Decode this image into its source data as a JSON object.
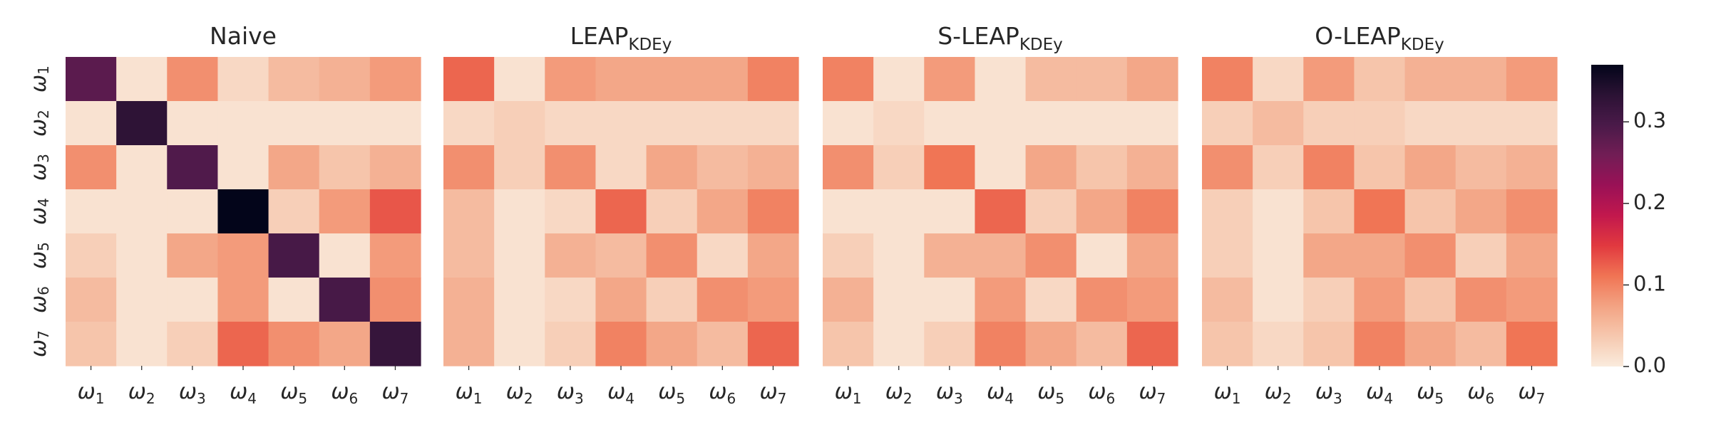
{
  "chart_data": {
    "type": "heatmap",
    "row_labels": [
      {
        "base": "ω",
        "sub": "1"
      },
      {
        "base": "ω",
        "sub": "2"
      },
      {
        "base": "ω",
        "sub": "3"
      },
      {
        "base": "ω",
        "sub": "4"
      },
      {
        "base": "ω",
        "sub": "5"
      },
      {
        "base": "ω",
        "sub": "6"
      },
      {
        "base": "ω",
        "sub": "7"
      }
    ],
    "col_labels": [
      {
        "base": "ω",
        "sub": "1"
      },
      {
        "base": "ω",
        "sub": "2"
      },
      {
        "base": "ω",
        "sub": "3"
      },
      {
        "base": "ω",
        "sub": "4"
      },
      {
        "base": "ω",
        "sub": "5"
      },
      {
        "base": "ω",
        "sub": "6"
      },
      {
        "base": "ω",
        "sub": "7"
      }
    ],
    "colormap": "rocket_r",
    "colorbar": {
      "range": [
        0.0,
        0.37
      ],
      "ticks": [
        0.0,
        0.1,
        0.2,
        0.3
      ],
      "tick_labels": [
        "0.0",
        "0.1",
        "0.2",
        "0.3"
      ]
    },
    "panels": [
      {
        "title": {
          "base": "Naive",
          "sub": ""
        },
        "values": [
          [
            0.28,
            0.01,
            0.09,
            0.02,
            0.05,
            0.06,
            0.08
          ],
          [
            0.01,
            0.33,
            0.01,
            0.01,
            0.01,
            0.01,
            0.01
          ],
          [
            0.09,
            0.01,
            0.29,
            0.01,
            0.07,
            0.04,
            0.06
          ],
          [
            0.01,
            0.01,
            0.01,
            0.37,
            0.03,
            0.08,
            0.13
          ],
          [
            0.03,
            0.01,
            0.07,
            0.08,
            0.3,
            0.01,
            0.08
          ],
          [
            0.05,
            0.01,
            0.01,
            0.08,
            0.01,
            0.3,
            0.09
          ],
          [
            0.04,
            0.01,
            0.03,
            0.12,
            0.09,
            0.07,
            0.32
          ]
        ]
      },
      {
        "title": {
          "base": "LEAP",
          "sub": "KDEy"
        },
        "values": [
          [
            0.12,
            0.01,
            0.08,
            0.07,
            0.07,
            0.07,
            0.1
          ],
          [
            0.02,
            0.03,
            0.02,
            0.02,
            0.02,
            0.02,
            0.02
          ],
          [
            0.09,
            0.03,
            0.09,
            0.02,
            0.07,
            0.05,
            0.06
          ],
          [
            0.05,
            0.01,
            0.02,
            0.12,
            0.03,
            0.07,
            0.1
          ],
          [
            0.05,
            0.01,
            0.06,
            0.05,
            0.09,
            0.02,
            0.07
          ],
          [
            0.06,
            0.01,
            0.02,
            0.07,
            0.03,
            0.09,
            0.08
          ],
          [
            0.06,
            0.01,
            0.03,
            0.1,
            0.07,
            0.05,
            0.12
          ]
        ]
      },
      {
        "title": {
          "base": "S-LEAP",
          "sub": "KDEy"
        },
        "values": [
          [
            0.1,
            0.01,
            0.08,
            0.01,
            0.05,
            0.05,
            0.07
          ],
          [
            0.01,
            0.02,
            0.01,
            0.01,
            0.01,
            0.01,
            0.01
          ],
          [
            0.09,
            0.03,
            0.11,
            0.01,
            0.07,
            0.04,
            0.06
          ],
          [
            0.01,
            0.01,
            0.01,
            0.12,
            0.03,
            0.07,
            0.1
          ],
          [
            0.03,
            0.01,
            0.06,
            0.06,
            0.09,
            0.01,
            0.07
          ],
          [
            0.06,
            0.01,
            0.01,
            0.08,
            0.02,
            0.09,
            0.08
          ],
          [
            0.04,
            0.01,
            0.03,
            0.1,
            0.07,
            0.05,
            0.12
          ]
        ]
      },
      {
        "title": {
          "base": "O-LEAP",
          "sub": "KDEy"
        },
        "values": [
          [
            0.1,
            0.02,
            0.08,
            0.04,
            0.06,
            0.06,
            0.08
          ],
          [
            0.03,
            0.05,
            0.03,
            0.03,
            0.02,
            0.02,
            0.02
          ],
          [
            0.09,
            0.03,
            0.1,
            0.04,
            0.07,
            0.05,
            0.06
          ],
          [
            0.03,
            0.01,
            0.04,
            0.11,
            0.04,
            0.07,
            0.09
          ],
          [
            0.03,
            0.01,
            0.07,
            0.07,
            0.09,
            0.03,
            0.07
          ],
          [
            0.05,
            0.01,
            0.03,
            0.08,
            0.04,
            0.09,
            0.08
          ],
          [
            0.04,
            0.02,
            0.04,
            0.1,
            0.07,
            0.05,
            0.11
          ]
        ]
      }
    ]
  }
}
